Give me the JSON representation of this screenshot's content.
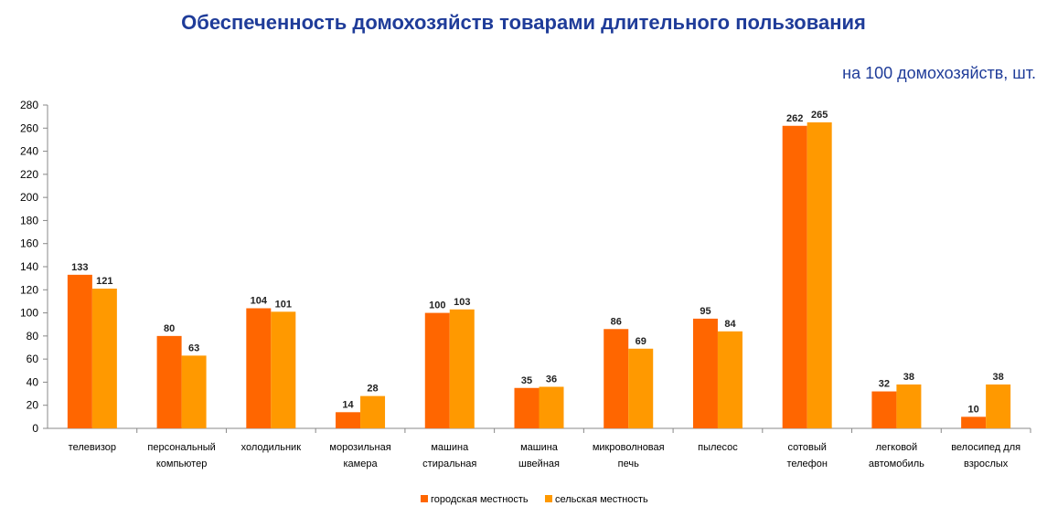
{
  "title": "Обеспеченность домохозяйств товарами длительного пользования",
  "subtitle": "на 100 домохозяйств, шт.",
  "colors": {
    "urban": "#ff6600",
    "rural": "#ff9900",
    "title": "#1f3c99"
  },
  "chart_data": {
    "type": "bar",
    "categories": [
      [
        "телевизор"
      ],
      [
        "персональный",
        "компьютер"
      ],
      [
        "холодильник"
      ],
      [
        "морозильная",
        "камера"
      ],
      [
        "машина",
        "стиральная"
      ],
      [
        "машина",
        "швейная"
      ],
      [
        "микроволновая",
        "печь"
      ],
      [
        "пылесос"
      ],
      [
        "сотовый",
        "телефон"
      ],
      [
        "легковой",
        "автомобиль"
      ],
      [
        "велосипед для",
        "взрослых"
      ]
    ],
    "series": [
      {
        "name": "городская местность",
        "values": [
          133,
          80,
          104,
          14,
          100,
          35,
          86,
          95,
          262,
          32,
          10
        ]
      },
      {
        "name": "сельская местность",
        "values": [
          121,
          63,
          101,
          28,
          103,
          36,
          69,
          84,
          265,
          38,
          38
        ]
      }
    ],
    "ylim": [
      0,
      280
    ],
    "yticks": [
      0,
      20,
      40,
      60,
      80,
      100,
      120,
      140,
      160,
      180,
      200,
      220,
      240,
      260,
      280
    ],
    "grid": false,
    "legend": "bottom"
  }
}
